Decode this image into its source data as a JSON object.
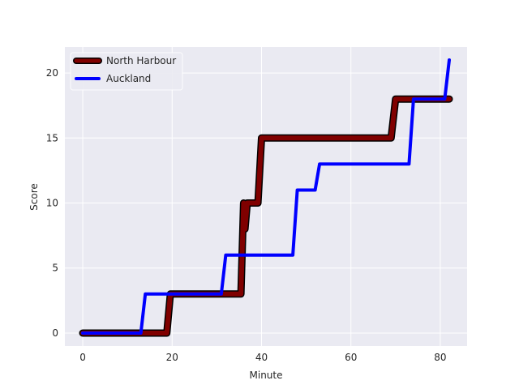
{
  "chart_data": {
    "type": "line",
    "title": "",
    "xlabel": "Minute",
    "ylabel": "Score",
    "xlim": [
      -4,
      86
    ],
    "ylim": [
      -1,
      22
    ],
    "xticks": [
      0,
      20,
      40,
      60,
      80
    ],
    "yticks": [
      0,
      5,
      10,
      15,
      20
    ],
    "grid": true,
    "legend_position": "upper-left",
    "background": "#eaeaf2",
    "series": [
      {
        "name": "North Harbour",
        "color": "#800000",
        "outline_color": "#000000",
        "points": [
          [
            0,
            0
          ],
          [
            18.8,
            0
          ],
          [
            19.6,
            3
          ],
          [
            31,
            3
          ],
          [
            34.2,
            3
          ],
          [
            35.4,
            3
          ],
          [
            36,
            10
          ],
          [
            36.3,
            8
          ],
          [
            36.8,
            10
          ],
          [
            39.2,
            10
          ],
          [
            40,
            15
          ],
          [
            69,
            15
          ],
          [
            70,
            18
          ],
          [
            82,
            18
          ]
        ]
      },
      {
        "name": "Auckland",
        "color": "#0000ff",
        "points": [
          [
            0,
            0
          ],
          [
            13,
            0
          ],
          [
            14,
            3
          ],
          [
            31,
            3
          ],
          [
            32,
            6
          ],
          [
            47,
            6
          ],
          [
            48,
            11
          ],
          [
            52,
            11
          ],
          [
            53,
            13
          ],
          [
            73,
            13
          ],
          [
            74,
            18
          ],
          [
            81,
            18
          ],
          [
            82,
            21
          ]
        ]
      }
    ]
  }
}
